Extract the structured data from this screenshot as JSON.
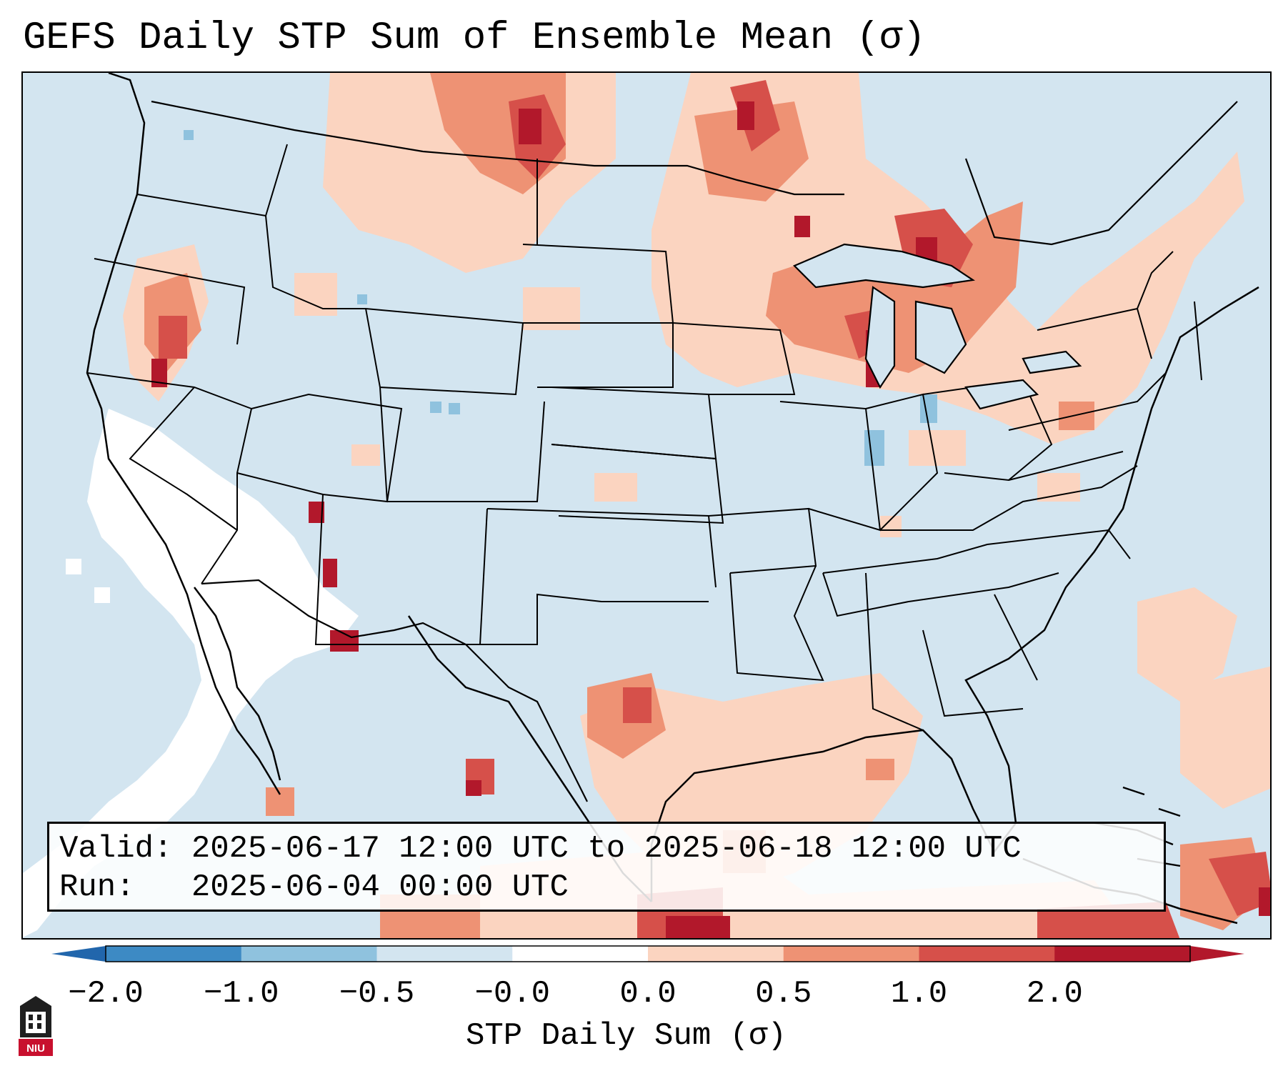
{
  "title": "GEFS Daily STP Sum of Ensemble Mean (σ)",
  "info": {
    "valid_label": "Valid:",
    "valid_value": "2025-06-17 12:00 UTC to 2025-06-18 12:00 UTC",
    "run_label": "Run:",
    "run_value": "2025-06-04 00:00 UTC"
  },
  "colorbar": {
    "label": "STP Daily Sum (σ)",
    "ticks": [
      "−2.0",
      "−1.0",
      "−0.5",
      "−0.0",
      "0.0",
      "0.5",
      "1.0",
      "2.0"
    ],
    "colors": [
      "#3d8ac4",
      "#8fc2de",
      "#d3e5f0",
      "#ffffff",
      "#fbd4c0",
      "#ee9274",
      "#d6504a",
      "#b2182b"
    ],
    "extend_low_color": "#2166ac",
    "extend_high_color": "#b2182b"
  },
  "map": {
    "projection": "Lambert Conformal (CONUS)",
    "background_color": "#d3e5f0"
  },
  "logo": {
    "text": "NIU",
    "color": "#c8102e"
  }
}
